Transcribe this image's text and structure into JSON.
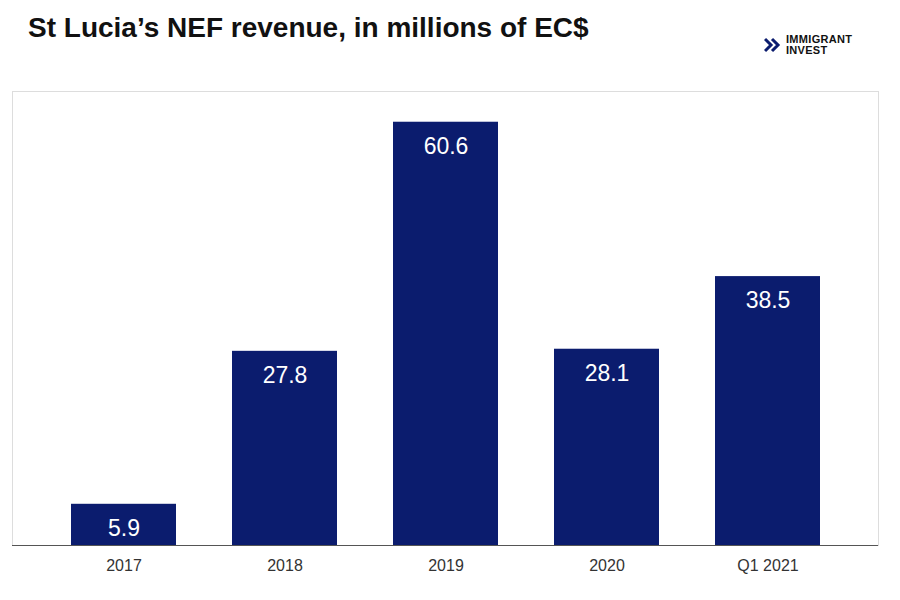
{
  "chart_data": {
    "type": "bar",
    "title": "St Lucia’s NEF revenue, in millions of EC$",
    "annotations": [
      "IMMIGRANT INVEST"
    ],
    "categories": [
      "2017",
      "2018",
      "2019",
      "2020",
      "Q1 2021"
    ],
    "values": [
      5.9,
      27.8,
      60.6,
      28.1,
      38.5
    ],
    "color": "#0b1c6e",
    "ylim": [
      0,
      65
    ],
    "grid": false,
    "data_labels": true,
    "tick_labels": "x"
  }
}
